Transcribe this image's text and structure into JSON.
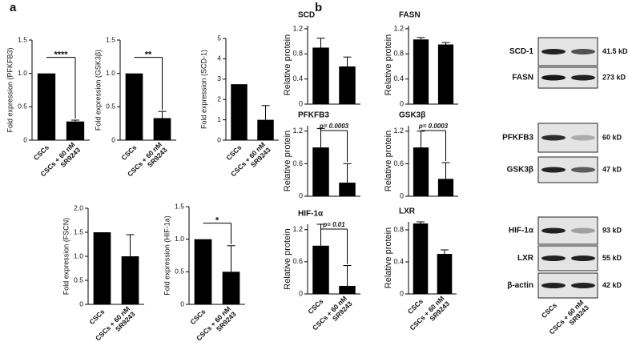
{
  "panels": [
    "a",
    "b"
  ],
  "chart_data": [
    {
      "type": "bar",
      "ylabel": "Fold expression (PFKFB3)",
      "categories": [
        "CSCs",
        "CSCs + 60 nM SR9243"
      ],
      "values": [
        1.0,
        0.28
      ],
      "errors": [
        0,
        0.02
      ],
      "annotation": "****",
      "ylim": [
        0,
        1.5
      ],
      "yticks": [
        0,
        {
          "value": 0.5,
          "label": "0.5"
        },
        {
          "value": 1,
          "label": "1.0"
        },
        1.5
      ],
      "color": "#000000"
    },
    {
      "type": "bar",
      "ylabel": "Fold expression (GSK3β)",
      "categories": [
        "CSCs",
        "CSCs + 60 nM SR9243"
      ],
      "values": [
        1.0,
        0.33
      ],
      "errors": [
        0,
        0.1
      ],
      "annotation": "**",
      "ylim": [
        0,
        1.5
      ],
      "yticks": [
        0,
        0.5,
        {
          "value": 1,
          "label": "1.0"
        },
        1.5
      ],
      "color": "#000000"
    },
    {
      "type": "bar",
      "ylabel": "Fold expression (SCD-1)",
      "categories": [
        "CSCs",
        "CSCs + 60 nM SR9243"
      ],
      "values": [
        2.75,
        1.0
      ],
      "errors": [
        0,
        0.7
      ],
      "ylim": [
        0,
        5
      ],
      "yticks": [
        0,
        1,
        2,
        3,
        4,
        5
      ],
      "color": "#000000"
    },
    {
      "type": "bar",
      "ylabel": "Fold expression (FSCN)",
      "categories": [
        "CSCs",
        "CSCs + 60 nM SR9243"
      ],
      "values": [
        1.5,
        1.0
      ],
      "errors": [
        0,
        0.45
      ],
      "ylim": [
        0,
        2
      ],
      "yticks": [
        0,
        0.5,
        {
          "value": 1,
          "label": "1.0"
        },
        1.5,
        {
          "value": 2,
          "label": "2.0"
        }
      ],
      "color": "#000000"
    },
    {
      "type": "bar",
      "ylabel": "Fold expression (HIF-1a)",
      "categories": [
        "CSCs",
        "CSCs + 60 nM SR9243"
      ],
      "values": [
        1.0,
        0.5
      ],
      "errors": [
        0,
        0.4
      ],
      "annotation": "*",
      "ylim": [
        0,
        1.5
      ],
      "yticks": [
        0,
        0.5,
        {
          "value": 1,
          "label": "1.0"
        },
        1.5
      ],
      "color": "#000000"
    },
    {
      "type": "bar",
      "title": "SCD",
      "ylabel": "Relative protein",
      "values": [
        0.9,
        0.6
      ],
      "errors": [
        0.15,
        0.15
      ],
      "ylim": [
        0,
        1.25
      ],
      "yticks": [
        0,
        0.4,
        0.8,
        1.2
      ],
      "color": "#000000"
    },
    {
      "type": "bar",
      "title": "FASN",
      "ylabel": "Relative protein",
      "values": [
        1.03,
        0.95
      ],
      "errors": [
        0.03,
        0.03
      ],
      "ylim": [
        0,
        1.25
      ],
      "yticks": [
        0,
        0.4,
        0.8,
        1.2
      ],
      "color": "#000000"
    },
    {
      "type": "bar",
      "title": "PFKFB3",
      "ylabel": "Relative protein",
      "values": [
        0.9,
        0.25
      ],
      "errors": [
        0.35,
        0.35
      ],
      "annotation": "p= 0.0003",
      "ylim": [
        0,
        1.3
      ],
      "yticks": [
        0,
        0.6,
        1.2
      ],
      "color": "#000000"
    },
    {
      "type": "bar",
      "title": "GSK3β",
      "ylabel": "Relative protein",
      "values": [
        0.9,
        0.32
      ],
      "errors": [
        0.3,
        0.3
      ],
      "annotation": "p= 0.0003",
      "ylim": [
        0,
        1.3
      ],
      "yticks": [
        0,
        0.6,
        1.2
      ],
      "color": "#000000"
    },
    {
      "type": "bar",
      "title": "HIF-1α",
      "ylabel": "Relative protein",
      "categories": [
        "CSCs",
        "CSCs + 60 nM SR9243"
      ],
      "values": [
        0.9,
        0.15
      ],
      "errors": [
        0.4,
        0.38
      ],
      "annotation": "p= 0.01",
      "ylim": [
        0,
        1.3
      ],
      "yticks": [
        0,
        0.6,
        1.2
      ],
      "color": "#000000"
    },
    {
      "type": "bar",
      "title": "LXR",
      "ylabel": "Relative protein",
      "categories": [
        "CSCs",
        "CSCs + 60 nM SR9243"
      ],
      "values": [
        0.88,
        0.5
      ],
      "errors": [
        0.02,
        0.05
      ],
      "ylim": [
        0,
        0.9
      ],
      "yticks": [
        0,
        0.4,
        0.8
      ],
      "color": "#000000"
    }
  ],
  "blots": {
    "rows": [
      {
        "label": "SCD-1",
        "size": "41.5 kDa"
      },
      {
        "label": "FASN",
        "size": "273 kD"
      },
      {
        "label": "PFKFB3",
        "size": "60 kD"
      },
      {
        "label": "GSK3β",
        "size": "47 kD"
      },
      {
        "label": "HIF-1α",
        "size": "93 kD"
      },
      {
        "label": "LXR",
        "size": "55 kD"
      },
      {
        "label": "β-actin",
        "size": "42 kD"
      }
    ],
    "lanes": [
      "CSCs",
      "CSCs + 60 nM SR9243"
    ]
  }
}
